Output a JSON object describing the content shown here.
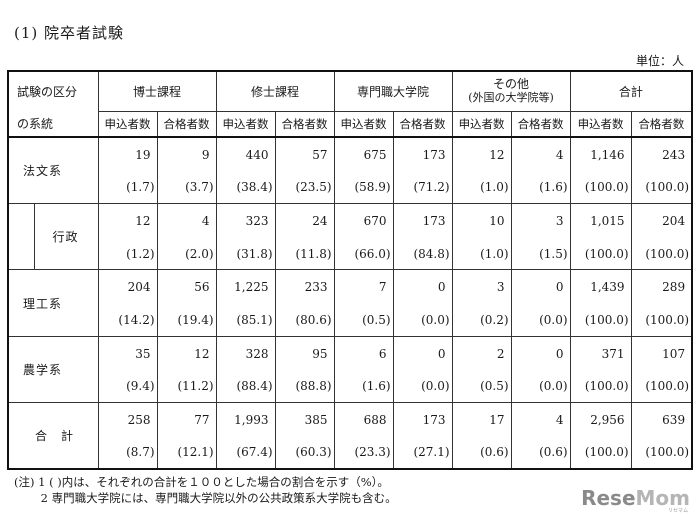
{
  "title": "(1) 院卒者試験",
  "unit": "単位：人",
  "table": {
    "header": {
      "row_label_top": "試験の区分",
      "row_label_bottom": "の系統",
      "groups": [
        {
          "label": "博士課程",
          "label2": ""
        },
        {
          "label": "修士課程",
          "label2": ""
        },
        {
          "label": "専門職大学院",
          "label2": ""
        },
        {
          "label": "その他",
          "label2": "(外国の大学院等)"
        },
        {
          "label": "合計",
          "label2": ""
        }
      ],
      "sub": [
        "申込者数",
        "合格者数",
        "申込者数",
        "合格者数",
        "申込者数",
        "合格者数",
        "申込者数",
        "合格者数",
        "申込者数",
        "合格者数"
      ]
    },
    "rows": [
      {
        "label": "法文系",
        "values": [
          "19",
          "9",
          "440",
          "57",
          "675",
          "173",
          "12",
          "4",
          "1,146",
          "243"
        ],
        "pcts": [
          "(1.7)",
          "(3.7)",
          "(38.4)",
          "(23.5)",
          "(58.9)",
          "(71.2)",
          "(1.0)",
          "(1.6)",
          "(100.0)",
          "(100.0)"
        ]
      },
      {
        "label": "行政",
        "values": [
          "12",
          "4",
          "323",
          "24",
          "670",
          "173",
          "10",
          "3",
          "1,015",
          "204"
        ],
        "pcts": [
          "(1.2)",
          "(2.0)",
          "(31.8)",
          "(11.8)",
          "(66.0)",
          "(84.8)",
          "(1.0)",
          "(1.5)",
          "(100.0)",
          "(100.0)"
        ]
      },
      {
        "label": "理工系",
        "values": [
          "204",
          "56",
          "1,225",
          "233",
          "7",
          "0",
          "3",
          "0",
          "1,439",
          "289"
        ],
        "pcts": [
          "(14.2)",
          "(19.4)",
          "(85.1)",
          "(80.6)",
          "(0.5)",
          "(0.0)",
          "(0.2)",
          "(0.0)",
          "(100.0)",
          "(100.0)"
        ]
      },
      {
        "label": "農学系",
        "values": [
          "35",
          "12",
          "328",
          "95",
          "6",
          "0",
          "2",
          "0",
          "371",
          "107"
        ],
        "pcts": [
          "(9.4)",
          "(11.2)",
          "(88.4)",
          "(88.8)",
          "(1.6)",
          "(0.0)",
          "(0.5)",
          "(0.0)",
          "(100.0)",
          "(100.0)"
        ]
      },
      {
        "label": "合　計",
        "values": [
          "258",
          "77",
          "1,993",
          "385",
          "688",
          "173",
          "17",
          "4",
          "2,956",
          "639"
        ],
        "pcts": [
          "(8.7)",
          "(12.1)",
          "(67.4)",
          "(60.3)",
          "(23.3)",
          "(27.1)",
          "(0.6)",
          "(0.6)",
          "(100.0)",
          "(100.0)"
        ]
      }
    ]
  },
  "notes": [
    "(注) 1 ( )内は、それぞれの合計を１００とした場合の割合を示す（%）。",
    "　　 2 専門職大学院には、専門職大学院以外の公共政策系大学院も含む。"
  ],
  "logo": {
    "text_a": "Rese",
    "text_b": "Mom",
    "sub": "リセマム"
  }
}
